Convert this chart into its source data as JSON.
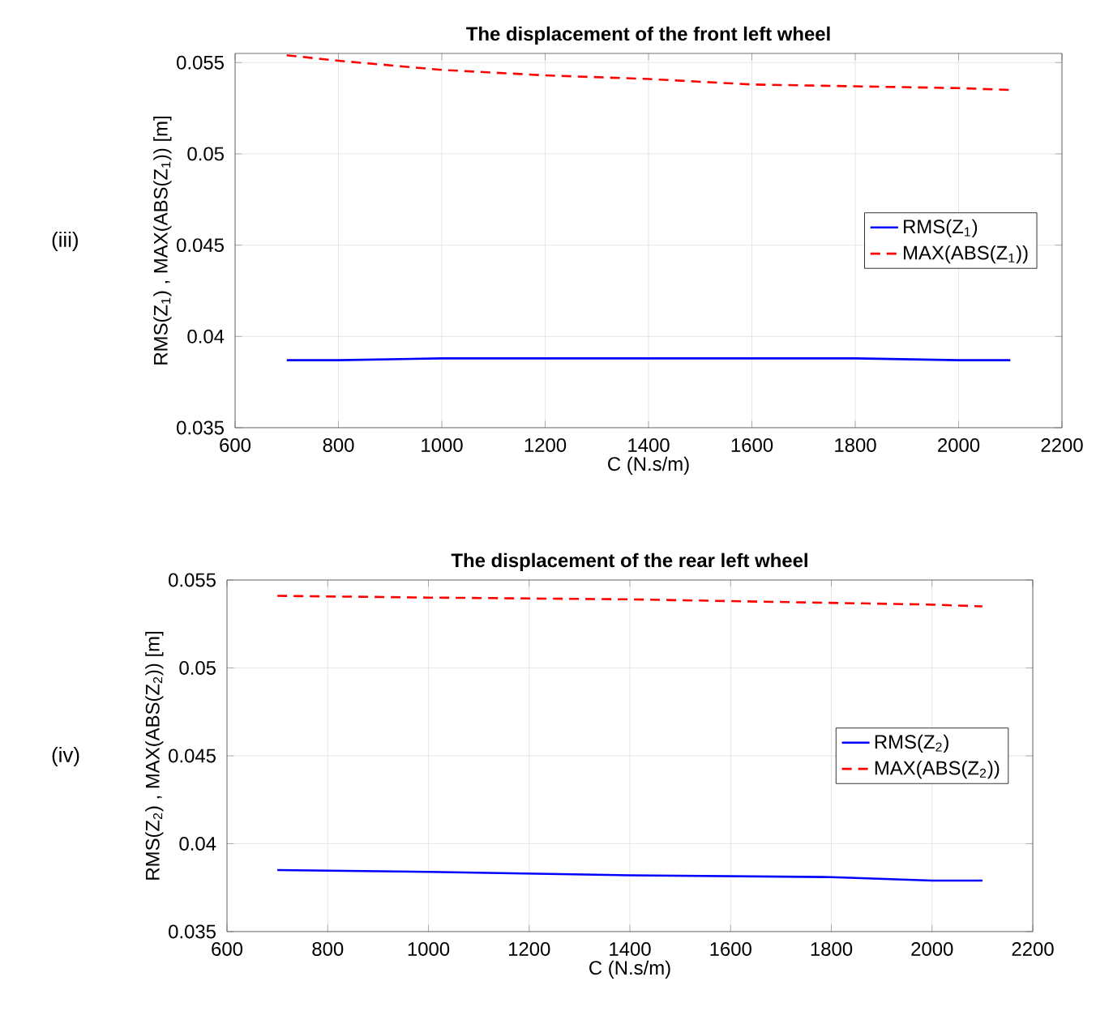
{
  "chart_data": [
    {
      "type": "line",
      "title": "The displacement of the front left wheel",
      "xlabel": "C (N.s/m)",
      "ylabel": "RMS(Z$_{1}$) , MAX(ABS(Z$_{1}$)) [m]",
      "annotations": [
        "(iii)"
      ],
      "x": [
        700,
        800,
        1000,
        1200,
        1400,
        1600,
        1800,
        2000,
        2100
      ],
      "series": [
        {
          "name": "RMS(Z$_{1}$)",
          "color": "#0000ff",
          "line_style": "solid",
          "values": [
            0.0387,
            0.0387,
            0.0388,
            0.0388,
            0.0388,
            0.0388,
            0.0388,
            0.0387,
            0.0387
          ]
        },
        {
          "name": "MAX(ABS(Z$_{1}$))",
          "color": "#ff0000",
          "line_style": "dashed",
          "values": [
            0.0554,
            0.0551,
            0.0546,
            0.0543,
            0.0541,
            0.0538,
            0.0537,
            0.0536,
            0.0535
          ]
        }
      ],
      "xlim": [
        600,
        2200
      ],
      "xticks": [
        600,
        800,
        1000,
        1200,
        1400,
        1600,
        1800,
        2000,
        2200
      ],
      "ylim": [
        0.035,
        0.0555
      ],
      "yticks": [
        0.035,
        0.04,
        0.045,
        0.05,
        0.055
      ],
      "grid": true,
      "legend": "right"
    },
    {
      "type": "line",
      "title": "The displacement of the rear left wheel",
      "xlabel": "C (N.s/m)",
      "ylabel": "RMS(Z$_{2}$) , MAX(ABS(Z$_{2}$)) [m]",
      "annotations": [
        "(iv)"
      ],
      "x": [
        700,
        1000,
        1400,
        1800,
        2000,
        2100
      ],
      "series": [
        {
          "name": "RMS(Z$_{2}$)",
          "color": "#0000ff",
          "line_style": "solid",
          "values": [
            0.0385,
            0.0384,
            0.0382,
            0.0381,
            0.0379,
            0.0379
          ]
        },
        {
          "name": "MAX(ABS(Z$_{2}$))",
          "color": "#ff0000",
          "line_style": "dashed",
          "values": [
            0.0541,
            0.054,
            0.0539,
            0.0537,
            0.0536,
            0.0535
          ]
        }
      ],
      "xlim": [
        600,
        2200
      ],
      "xticks": [
        600,
        800,
        1000,
        1200,
        1400,
        1600,
        1800,
        2000,
        2200
      ],
      "ylim": [
        0.035,
        0.055
      ],
      "yticks": [
        0.035,
        0.04,
        0.045,
        0.05,
        0.055
      ],
      "grid": true,
      "legend": "right"
    }
  ]
}
